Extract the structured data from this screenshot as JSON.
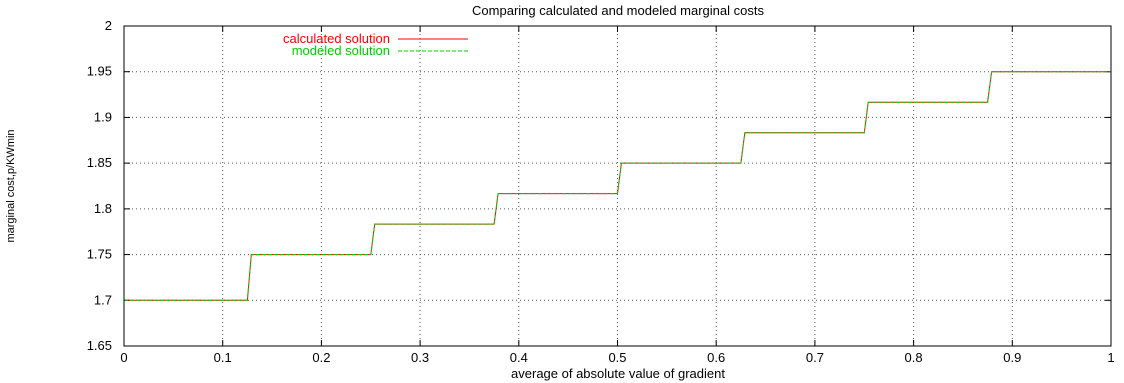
{
  "chart_data": {
    "type": "line",
    "title": "Comparing calculated and modeled marginal costs",
    "xlabel": "average of absolute value of gradient",
    "ylabel": "marginal cost,p/KWmin",
    "xlim": [
      0,
      1
    ],
    "ylim": [
      1.65,
      2
    ],
    "x_ticks": [
      "0",
      "0.1",
      "0.2",
      "0.3",
      "0.4",
      "0.5",
      "0.6",
      "0.7",
      "0.8",
      "0.9",
      "1"
    ],
    "y_ticks": [
      "1.65",
      "1.7",
      "1.75",
      "1.8",
      "1.85",
      "1.9",
      "1.95",
      "2"
    ],
    "grid": true,
    "legend_position": "top-left",
    "series": [
      {
        "name": "calculated solution",
        "color": "#ff0000",
        "style": "solid",
        "x": [
          0,
          0.125,
          0.129,
          0.25,
          0.254,
          0.375,
          0.379,
          0.5,
          0.504,
          0.625,
          0.629,
          0.75,
          0.754,
          0.875,
          0.879,
          1
        ],
        "y": [
          1.7,
          1.7,
          1.75,
          1.75,
          1.7833,
          1.7833,
          1.8167,
          1.8167,
          1.85,
          1.85,
          1.8833,
          1.8833,
          1.9167,
          1.9167,
          1.95,
          1.95
        ]
      },
      {
        "name": "modeled solution",
        "color": "#00cc00",
        "style": "dashed",
        "x": [
          0,
          0.125,
          0.129,
          0.25,
          0.254,
          0.375,
          0.379,
          0.5,
          0.504,
          0.625,
          0.629,
          0.75,
          0.754,
          0.875,
          0.879,
          1
        ],
        "y": [
          1.7,
          1.7,
          1.75,
          1.75,
          1.7833,
          1.7833,
          1.8167,
          1.8167,
          1.85,
          1.85,
          1.8833,
          1.8833,
          1.9167,
          1.9167,
          1.95,
          1.95
        ]
      }
    ]
  }
}
